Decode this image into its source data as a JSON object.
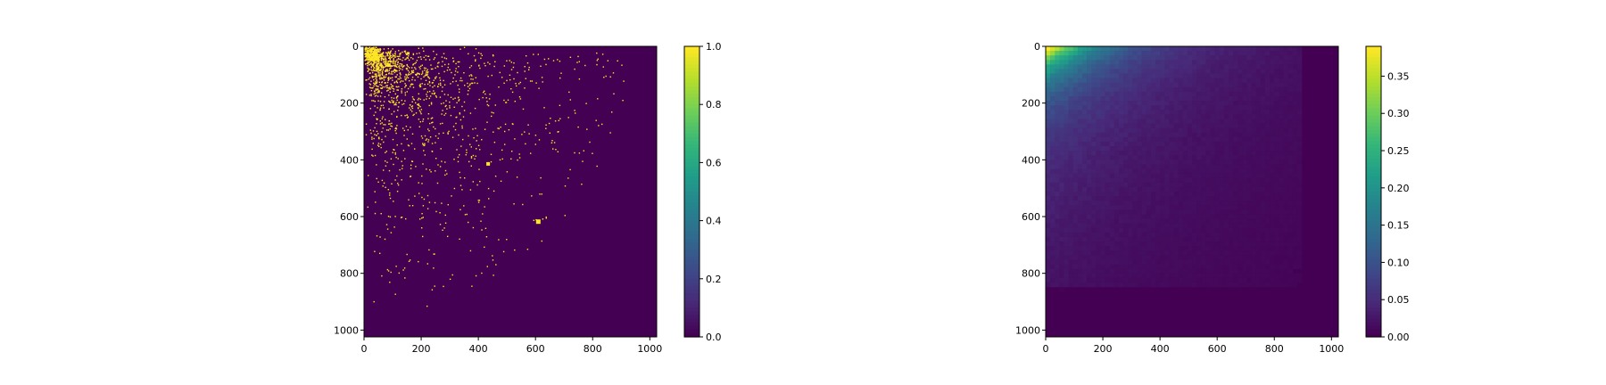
{
  "colors": {
    "background": "#ffffff",
    "viridis": [
      "#440154",
      "#482878",
      "#3e4989",
      "#31688e",
      "#26828e",
      "#1f9e89",
      "#35b779",
      "#6ece58",
      "#b5de2b",
      "#fde725"
    ]
  },
  "chart_data": [
    {
      "type": "heatmap",
      "title": "",
      "xlabel": "",
      "ylabel": "",
      "xlim": [
        0,
        1024
      ],
      "ylim": [
        1024,
        0
      ],
      "y_axis_inverted": true,
      "x_ticks": [
        "0",
        "200",
        "400",
        "600",
        "800",
        "1000"
      ],
      "y_ticks": [
        "0",
        "200",
        "400",
        "600",
        "800",
        "1000"
      ],
      "x_tick_values": [
        0,
        200,
        400,
        600,
        800,
        1000
      ],
      "y_tick_values": [
        0,
        200,
        400,
        600,
        800,
        1000
      ],
      "colormap": "viridis",
      "value_range": [
        0.0,
        1.0
      ],
      "colorbar_ticks": [
        "0.0",
        "0.2",
        "0.4",
        "0.6",
        "0.8",
        "1.0"
      ],
      "colorbar_tick_values": [
        0.0,
        0.2,
        0.4,
        0.6,
        0.8,
        1.0
      ],
      "description_values": "binary sparse matrix: values 0 or 1, density of 1s highest near (0,0) and decaying toward larger indices; nonzeros mostly within 0-800 on both axes",
      "grid": false,
      "legend": "colorbar-right"
    },
    {
      "type": "heatmap",
      "title": "",
      "xlabel": "",
      "ylabel": "",
      "xlim": [
        0,
        1024
      ],
      "ylim": [
        1024,
        0
      ],
      "y_axis_inverted": true,
      "x_ticks": [
        "0",
        "200",
        "400",
        "600",
        "800",
        "1000"
      ],
      "y_ticks": [
        "0",
        "200",
        "400",
        "600",
        "800",
        "1000"
      ],
      "x_tick_values": [
        0,
        200,
        400,
        600,
        800,
        1000
      ],
      "y_tick_values": [
        0,
        200,
        400,
        600,
        800,
        1000
      ],
      "colormap": "viridis",
      "value_range": [
        0.0,
        0.39
      ],
      "colorbar_ticks": [
        "0.00",
        "0.05",
        "0.10",
        "0.15",
        "0.20",
        "0.25",
        "0.30",
        "0.35"
      ],
      "colorbar_tick_values": [
        0.0,
        0.05,
        0.1,
        0.15,
        0.2,
        0.25,
        0.3,
        0.35
      ],
      "description_values": "smooth density field: max ~0.39 near (0-100, 0-50), decaying smoothly toward 0 beyond ~800 on both axes",
      "grid": false,
      "legend": "colorbar-right"
    }
  ]
}
